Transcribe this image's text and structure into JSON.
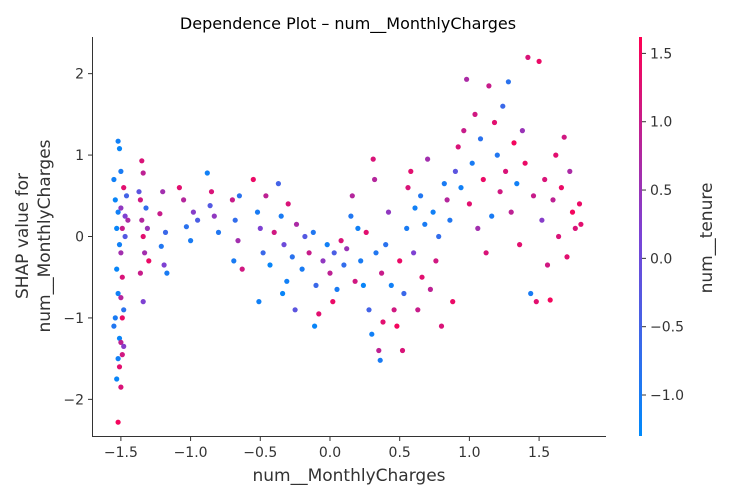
{
  "chart_data": {
    "type": "scatter",
    "title": "Dependence Plot – num__MonthlyCharges",
    "xlabel": "num__MonthlyCharges",
    "ylabel_lines": [
      "SHAP value for",
      "num__MonthlyCharges"
    ],
    "xlim": [
      -1.7,
      1.98
    ],
    "ylim": [
      -2.45,
      2.45
    ],
    "x_ticks": [
      -1.5,
      -1.0,
      -0.5,
      0.0,
      0.5,
      1.0,
      1.5
    ],
    "x_tick_labels": [
      "−1.5",
      "−1.0",
      "−0.5",
      "0.0",
      "0.5",
      "1.0",
      "1.5"
    ],
    "y_ticks": [
      -2,
      -1,
      0,
      1,
      2
    ],
    "y_tick_labels": [
      "−2",
      "−1",
      "0",
      "1",
      "2"
    ],
    "grid": false,
    "colorbar": {
      "label": "num__tenure",
      "range": [
        -1.3,
        1.62
      ],
      "ticks": [
        -1.0,
        -0.5,
        0.0,
        0.5,
        1.0,
        1.5
      ],
      "tick_labels": [
        "−1.0",
        "−0.5",
        "0.0",
        "0.5",
        "1.0",
        "1.5"
      ],
      "colors": [
        "#008afb",
        "#7a43d6",
        "#ff0052"
      ]
    },
    "points": [
      {
        "x": -1.52,
        "y": 1.17,
        "c": -1.1
      },
      {
        "x": -1.51,
        "y": 1.08,
        "c": -1.2
      },
      {
        "x": -1.5,
        "y": 0.8,
        "c": -1.0
      },
      {
        "x": -1.54,
        "y": 0.45,
        "c": -1.2
      },
      {
        "x": -1.52,
        "y": 0.3,
        "c": -1.1
      },
      {
        "x": -1.53,
        "y": 0.1,
        "c": -1.2
      },
      {
        "x": -1.51,
        "y": -0.1,
        "c": -1.1
      },
      {
        "x": -1.53,
        "y": -0.4,
        "c": -1.2
      },
      {
        "x": -1.52,
        "y": -0.7,
        "c": -1.1
      },
      {
        "x": -1.54,
        "y": -1.0,
        "c": -1.0
      },
      {
        "x": -1.51,
        "y": -1.25,
        "c": -1.2
      },
      {
        "x": -1.52,
        "y": -1.5,
        "c": -1.1
      },
      {
        "x": -1.53,
        "y": -1.75,
        "c": -1.2
      },
      {
        "x": -1.52,
        "y": -2.28,
        "c": 1.5
      },
      {
        "x": -1.5,
        "y": -1.85,
        "c": 1.2
      },
      {
        "x": -1.51,
        "y": -1.6,
        "c": 1.3
      },
      {
        "x": -1.49,
        "y": -1.45,
        "c": 1.1
      },
      {
        "x": -1.5,
        "y": -1.3,
        "c": 0.9
      },
      {
        "x": -1.49,
        "y": -1.0,
        "c": 1.4
      },
      {
        "x": -1.5,
        "y": -0.75,
        "c": 0.8
      },
      {
        "x": -1.49,
        "y": -0.5,
        "c": 1.2
      },
      {
        "x": -1.5,
        "y": -0.2,
        "c": 0.6
      },
      {
        "x": -1.49,
        "y": 0.1,
        "c": 1.0
      },
      {
        "x": -1.5,
        "y": 0.35,
        "c": 0.4
      },
      {
        "x": -1.48,
        "y": 0.6,
        "c": 1.3
      },
      {
        "x": -1.47,
        "y": 0.0,
        "c": -0.3
      },
      {
        "x": -1.47,
        "y": 0.25,
        "c": 0.2
      },
      {
        "x": -1.46,
        "y": 0.5,
        "c": -0.5
      },
      {
        "x": -1.45,
        "y": 0.2,
        "c": 0.7
      },
      {
        "x": -1.48,
        "y": -0.9,
        "c": -0.8
      },
      {
        "x": -1.48,
        "y": -1.35,
        "c": 0.3
      },
      {
        "x": -1.55,
        "y": -1.1,
        "c": -0.9
      },
      {
        "x": -1.55,
        "y": 0.7,
        "c": -1.1
      },
      {
        "x": -1.35,
        "y": 0.93,
        "c": 1.2
      },
      {
        "x": -1.34,
        "y": 0.78,
        "c": 0.9
      },
      {
        "x": -1.36,
        "y": 0.45,
        "c": 1.1
      },
      {
        "x": -1.35,
        "y": 0.2,
        "c": 0.8
      },
      {
        "x": -1.34,
        "y": 0.0,
        "c": 1.3
      },
      {
        "x": -1.33,
        "y": -0.2,
        "c": 0.6
      },
      {
        "x": -1.36,
        "y": -0.45,
        "c": 1.0
      },
      {
        "x": -1.34,
        "y": -0.8,
        "c": 0.2
      },
      {
        "x": -1.32,
        "y": 0.35,
        "c": -0.7
      },
      {
        "x": -1.31,
        "y": 0.1,
        "c": 0.5
      },
      {
        "x": -1.3,
        "y": -0.3,
        "c": 1.4
      },
      {
        "x": -1.37,
        "y": 0.55,
        "c": -0.2
      },
      {
        "x": -1.2,
        "y": 0.55,
        "c": 0.6
      },
      {
        "x": -1.22,
        "y": 0.28,
        "c": 1.0
      },
      {
        "x": -1.18,
        "y": 0.05,
        "c": -0.6
      },
      {
        "x": -1.21,
        "y": -0.12,
        "c": -0.9
      },
      {
        "x": -1.17,
        "y": -0.45,
        "c": -1.0
      },
      {
        "x": -1.19,
        "y": -0.35,
        "c": 0.2
      },
      {
        "x": -1.05,
        "y": 0.45,
        "c": 0.8
      },
      {
        "x": -1.03,
        "y": 0.12,
        "c": -0.8
      },
      {
        "x": -1.0,
        "y": -0.05,
        "c": -1.0
      },
      {
        "x": -0.98,
        "y": 0.3,
        "c": 0.3
      },
      {
        "x": -0.95,
        "y": 0.2,
        "c": -0.4
      },
      {
        "x": -1.08,
        "y": 0.6,
        "c": 1.3
      },
      {
        "x": -0.88,
        "y": 0.78,
        "c": -1.1
      },
      {
        "x": -0.85,
        "y": 0.55,
        "c": 1.2
      },
      {
        "x": -0.83,
        "y": 0.25,
        "c": 0.4
      },
      {
        "x": -0.8,
        "y": 0.05,
        "c": -0.9
      },
      {
        "x": -0.86,
        "y": 0.38,
        "c": -0.3
      },
      {
        "x": -0.7,
        "y": 0.45,
        "c": 1.0
      },
      {
        "x": -0.68,
        "y": 0.2,
        "c": -0.7
      },
      {
        "x": -0.66,
        "y": -0.05,
        "c": 0.6
      },
      {
        "x": -0.69,
        "y": -0.3,
        "c": -1.0
      },
      {
        "x": -0.65,
        "y": 0.5,
        "c": -0.8
      },
      {
        "x": -0.63,
        "y": -0.4,
        "c": 1.1
      },
      {
        "x": -0.55,
        "y": 0.7,
        "c": 1.4
      },
      {
        "x": -0.52,
        "y": 0.3,
        "c": -1.0
      },
      {
        "x": -0.5,
        "y": 0.1,
        "c": 0.2
      },
      {
        "x": -0.48,
        "y": -0.2,
        "c": -0.6
      },
      {
        "x": -0.51,
        "y": -0.8,
        "c": -1.1
      },
      {
        "x": -0.46,
        "y": 0.5,
        "c": 0.9
      },
      {
        "x": -0.43,
        "y": -0.35,
        "c": -1.2
      },
      {
        "x": -0.4,
        "y": 0.05,
        "c": 1.1
      },
      {
        "x": -0.37,
        "y": 0.65,
        "c": -0.5
      },
      {
        "x": -0.35,
        "y": 0.25,
        "c": -1.0
      },
      {
        "x": -0.33,
        "y": -0.1,
        "c": 0.0
      },
      {
        "x": -0.31,
        "y": -0.55,
        "c": -1.1
      },
      {
        "x": -0.34,
        "y": -0.7,
        "c": -1.2
      },
      {
        "x": -0.3,
        "y": 0.4,
        "c": 1.2
      },
      {
        "x": -0.27,
        "y": -0.25,
        "c": -0.8
      },
      {
        "x": -0.24,
        "y": 0.15,
        "c": 0.7
      },
      {
        "x": -0.2,
        "y": -0.4,
        "c": -1.0
      },
      {
        "x": -0.18,
        "y": 0.0,
        "c": -0.3
      },
      {
        "x": -0.15,
        "y": -0.2,
        "c": 1.0
      },
      {
        "x": -0.12,
        "y": 0.05,
        "c": -0.9
      },
      {
        "x": -0.1,
        "y": -0.6,
        "c": -0.6
      },
      {
        "x": -0.08,
        "y": -0.95,
        "c": 1.3
      },
      {
        "x": -0.05,
        "y": -0.3,
        "c": 0.4
      },
      {
        "x": -0.02,
        "y": -0.1,
        "c": -1.1
      },
      {
        "x": 0.0,
        "y": -0.45,
        "c": 0.9
      },
      {
        "x": 0.03,
        "y": -0.2,
        "c": -0.4
      },
      {
        "x": 0.05,
        "y": -0.65,
        "c": -1.0
      },
      {
        "x": 0.08,
        "y": -0.05,
        "c": 1.2
      },
      {
        "x": 0.1,
        "y": -0.35,
        "c": -0.7
      },
      {
        "x": 0.12,
        "y": -0.15,
        "c": 0.5
      },
      {
        "x": 0.15,
        "y": 0.25,
        "c": -0.9
      },
      {
        "x": 0.16,
        "y": 0.5,
        "c": 0.8
      },
      {
        "x": 0.18,
        "y": -0.55,
        "c": 1.1
      },
      {
        "x": 0.2,
        "y": 0.1,
        "c": -1.1
      },
      {
        "x": -0.11,
        "y": -1.1,
        "c": -1.2
      },
      {
        "x": 0.02,
        "y": -0.8,
        "c": 1.4
      },
      {
        "x": -0.25,
        "y": -0.9,
        "c": -0.2
      },
      {
        "x": 0.22,
        "y": -0.3,
        "c": -1.0
      },
      {
        "x": 0.24,
        "y": -0.6,
        "c": -1.2
      },
      {
        "x": 0.26,
        "y": 0.05,
        "c": 1.3
      },
      {
        "x": 0.28,
        "y": -0.9,
        "c": -0.5
      },
      {
        "x": 0.3,
        "y": -1.2,
        "c": -1.1
      },
      {
        "x": 0.31,
        "y": 0.95,
        "c": 1.2
      },
      {
        "x": 0.32,
        "y": 0.7,
        "c": 0.8
      },
      {
        "x": 0.33,
        "y": -0.2,
        "c": -0.9
      },
      {
        "x": 0.35,
        "y": -1.4,
        "c": 0.9
      },
      {
        "x": 0.36,
        "y": -1.52,
        "c": -1.0
      },
      {
        "x": 0.37,
        "y": -0.45,
        "c": 1.0
      },
      {
        "x": 0.38,
        "y": -1.05,
        "c": 1.3
      },
      {
        "x": 0.4,
        "y": -0.1,
        "c": -0.8
      },
      {
        "x": 0.42,
        "y": 0.3,
        "c": 0.4
      },
      {
        "x": 0.44,
        "y": -0.6,
        "c": -1.1
      },
      {
        "x": 0.46,
        "y": -0.9,
        "c": 1.1
      },
      {
        "x": 0.48,
        "y": -1.1,
        "c": 1.5
      },
      {
        "x": 0.5,
        "y": -0.3,
        "c": 1.4
      },
      {
        "x": 0.52,
        "y": -1.4,
        "c": 1.2
      },
      {
        "x": 0.53,
        "y": -0.7,
        "c": -0.6
      },
      {
        "x": 0.55,
        "y": 0.1,
        "c": -1.0
      },
      {
        "x": 0.56,
        "y": 0.6,
        "c": 1.2
      },
      {
        "x": 0.58,
        "y": 0.8,
        "c": 1.3
      },
      {
        "x": 0.6,
        "y": -0.2,
        "c": 0.2
      },
      {
        "x": 0.61,
        "y": 0.35,
        "c": -1.1
      },
      {
        "x": 0.63,
        "y": -0.9,
        "c": 1.0
      },
      {
        "x": 0.65,
        "y": 0.5,
        "c": -0.9
      },
      {
        "x": 0.66,
        "y": -0.5,
        "c": 1.3
      },
      {
        "x": 0.68,
        "y": 0.15,
        "c": -1.0
      },
      {
        "x": 0.7,
        "y": 0.95,
        "c": 0.6
      },
      {
        "x": 0.72,
        "y": -0.65,
        "c": 0.9
      },
      {
        "x": 0.74,
        "y": 0.3,
        "c": -1.1
      },
      {
        "x": 0.76,
        "y": -0.3,
        "c": 1.1
      },
      {
        "x": 0.78,
        "y": 0.0,
        "c": -0.7
      },
      {
        "x": 0.8,
        "y": -1.1,
        "c": 1.2
      },
      {
        "x": 0.82,
        "y": 0.65,
        "c": -1.0
      },
      {
        "x": 0.84,
        "y": 0.45,
        "c": 0.8
      },
      {
        "x": 0.86,
        "y": 0.2,
        "c": -0.9
      },
      {
        "x": 0.88,
        "y": -0.8,
        "c": 1.4
      },
      {
        "x": 0.9,
        "y": 0.8,
        "c": -0.2
      },
      {
        "x": 0.92,
        "y": 1.1,
        "c": 1.2
      },
      {
        "x": 0.94,
        "y": 0.6,
        "c": -1.1
      },
      {
        "x": 0.96,
        "y": 1.3,
        "c": 1.0
      },
      {
        "x": 0.98,
        "y": 1.93,
        "c": 0.7
      },
      {
        "x": 1.0,
        "y": 0.4,
        "c": 1.3
      },
      {
        "x": 1.02,
        "y": 0.9,
        "c": -1.0
      },
      {
        "x": 1.04,
        "y": 1.5,
        "c": 1.1
      },
      {
        "x": 1.06,
        "y": 0.1,
        "c": 0.6
      },
      {
        "x": 1.08,
        "y": 1.2,
        "c": -0.8
      },
      {
        "x": 1.1,
        "y": 0.7,
        "c": 1.4
      },
      {
        "x": 1.12,
        "y": -0.2,
        "c": 1.2
      },
      {
        "x": 1.14,
        "y": 1.85,
        "c": 1.0
      },
      {
        "x": 1.16,
        "y": 0.25,
        "c": -1.0
      },
      {
        "x": 1.18,
        "y": 1.4,
        "c": 1.3
      },
      {
        "x": 1.2,
        "y": 1.0,
        "c": -0.9
      },
      {
        "x": 1.22,
        "y": 0.55,
        "c": 1.1
      },
      {
        "x": 1.24,
        "y": 1.6,
        "c": -0.6
      },
      {
        "x": 1.26,
        "y": 0.8,
        "c": 1.2
      },
      {
        "x": 1.28,
        "y": 1.9,
        "c": -0.8
      },
      {
        "x": 1.3,
        "y": 0.3,
        "c": 0.9
      },
      {
        "x": 1.32,
        "y": 1.15,
        "c": 1.5
      },
      {
        "x": 1.34,
        "y": 0.65,
        "c": -1.1
      },
      {
        "x": 1.36,
        "y": -0.1,
        "c": 1.3
      },
      {
        "x": 1.38,
        "y": 1.3,
        "c": 0.5
      },
      {
        "x": 1.4,
        "y": 0.9,
        "c": 1.4
      },
      {
        "x": 1.42,
        "y": 2.2,
        "c": 1.2
      },
      {
        "x": 1.44,
        "y": -0.7,
        "c": -1.0
      },
      {
        "x": 1.46,
        "y": 0.5,
        "c": 1.0
      },
      {
        "x": 1.48,
        "y": -0.8,
        "c": 1.3
      },
      {
        "x": 1.5,
        "y": 2.15,
        "c": 1.4
      },
      {
        "x": 1.52,
        "y": 0.2,
        "c": 0.3
      },
      {
        "x": 1.54,
        "y": 0.7,
        "c": 1.2
      },
      {
        "x": 1.56,
        "y": -0.35,
        "c": 1.1
      },
      {
        "x": 1.58,
        "y": -0.78,
        "c": 1.5
      },
      {
        "x": 1.6,
        "y": 0.45,
        "c": 0.9
      },
      {
        "x": 1.62,
        "y": 1.0,
        "c": 1.3
      },
      {
        "x": 1.64,
        "y": 0.0,
        "c": 1.2
      },
      {
        "x": 1.66,
        "y": 0.6,
        "c": 1.4
      },
      {
        "x": 1.68,
        "y": 1.22,
        "c": 1.1
      },
      {
        "x": 1.7,
        "y": -0.25,
        "c": 1.3
      },
      {
        "x": 1.72,
        "y": 0.8,
        "c": 0.7
      },
      {
        "x": 1.74,
        "y": 0.3,
        "c": 1.5
      },
      {
        "x": 1.76,
        "y": 0.1,
        "c": 1.2
      },
      {
        "x": 1.79,
        "y": 0.4,
        "c": 1.4
      },
      {
        "x": 1.8,
        "y": 0.15,
        "c": 1.3
      }
    ]
  }
}
